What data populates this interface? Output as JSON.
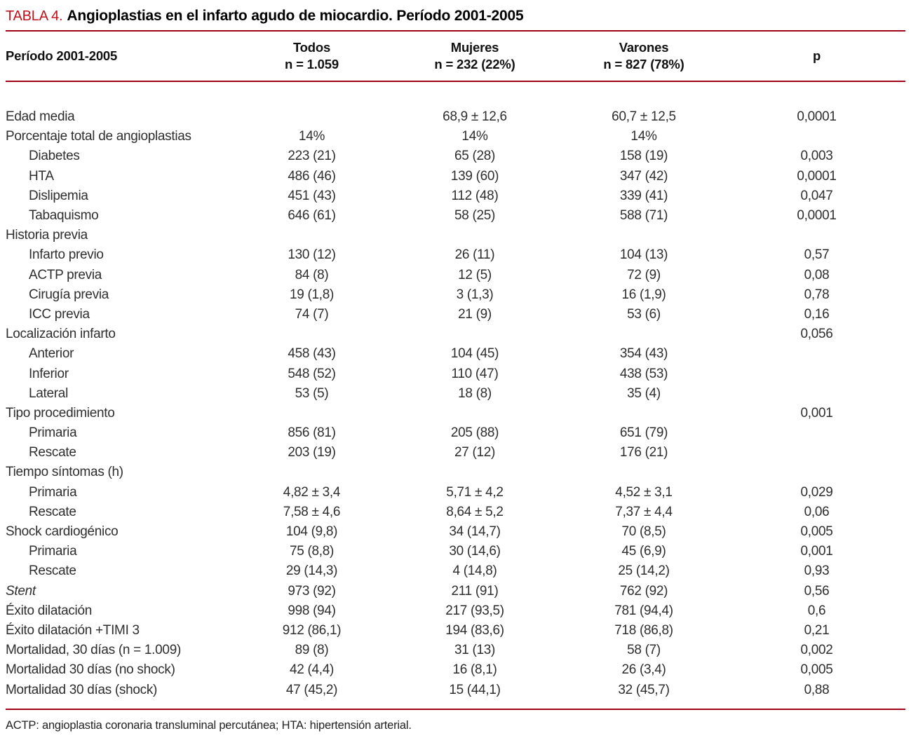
{
  "title": {
    "label": "TABLA 4.",
    "text": "Angioplastias en el infarto agudo de miocardio. Período 2001-2005"
  },
  "colors": {
    "title_red": "#c1121c",
    "rule_red": "#a00018",
    "text": "#2e2e2e"
  },
  "table": {
    "row_header": "Período 2001-2005",
    "columns": [
      {
        "line1": "Todos",
        "line2": "n = 1.059"
      },
      {
        "line1": "Mujeres",
        "line2": "n = 232 (22%)"
      },
      {
        "line1": "Varones",
        "line2": "n = 827 (78%)"
      },
      {
        "line1": "p",
        "line2": ""
      }
    ],
    "rows": [
      {
        "label": "Edad media",
        "indent": false,
        "italic": false,
        "values": [
          "",
          "68,9 ± 12,6",
          "60,7 ± 12,5",
          "0,0001"
        ]
      },
      {
        "label": "Porcentaje total de angioplastias",
        "indent": false,
        "italic": false,
        "values": [
          "14%",
          "14%",
          "14%",
          ""
        ]
      },
      {
        "label": "Diabetes",
        "indent": true,
        "italic": false,
        "values": [
          "223 (21)",
          "65 (28)",
          "158 (19)",
          "0,003"
        ]
      },
      {
        "label": "HTA",
        "indent": true,
        "italic": false,
        "values": [
          "486 (46)",
          "139 (60)",
          "347 (42)",
          "0,0001"
        ]
      },
      {
        "label": "Dislipemia",
        "indent": true,
        "italic": false,
        "values": [
          "451 (43)",
          "112 (48)",
          "339 (41)",
          "0,047"
        ]
      },
      {
        "label": "Tabaquismo",
        "indent": true,
        "italic": false,
        "values": [
          "646 (61)",
          "58 (25)",
          "588 (71)",
          "0,0001"
        ]
      },
      {
        "label": "Historia previa",
        "indent": false,
        "italic": false,
        "values": [
          "",
          "",
          "",
          ""
        ]
      },
      {
        "label": "Infarto previo",
        "indent": true,
        "italic": false,
        "values": [
          "130 (12)",
          "26 (11)",
          "104 (13)",
          "0,57"
        ]
      },
      {
        "label": "ACTP previa",
        "indent": true,
        "italic": false,
        "values": [
          "84 (8)",
          "12 (5)",
          "72 (9)",
          "0,08"
        ]
      },
      {
        "label": "Cirugía previa",
        "indent": true,
        "italic": false,
        "values": [
          "19 (1,8)",
          "3 (1,3)",
          "16 (1,9)",
          "0,78"
        ]
      },
      {
        "label": "ICC previa",
        "indent": true,
        "italic": false,
        "values": [
          "74 (7)",
          "21 (9)",
          "53 (6)",
          "0,16"
        ]
      },
      {
        "label": "Localización infarto",
        "indent": false,
        "italic": false,
        "values": [
          "",
          "",
          "",
          "0,056"
        ]
      },
      {
        "label": "Anterior",
        "indent": true,
        "italic": false,
        "values": [
          "458 (43)",
          "104 (45)",
          "354 (43)",
          ""
        ]
      },
      {
        "label": "Inferior",
        "indent": true,
        "italic": false,
        "values": [
          "548 (52)",
          "110 (47)",
          "438 (53)",
          ""
        ]
      },
      {
        "label": "Lateral",
        "indent": true,
        "italic": false,
        "values": [
          "53 (5)",
          "18 (8)",
          "35 (4)",
          ""
        ]
      },
      {
        "label": "Tipo procedimiento",
        "indent": false,
        "italic": false,
        "values": [
          "",
          "",
          "",
          "0,001"
        ]
      },
      {
        "label": "Primaria",
        "indent": true,
        "italic": false,
        "values": [
          "856 (81)",
          "205 (88)",
          "651 (79)",
          ""
        ]
      },
      {
        "label": "Rescate",
        "indent": true,
        "italic": false,
        "values": [
          "203 (19)",
          "27 (12)",
          "176 (21)",
          ""
        ]
      },
      {
        "label": "Tiempo síntomas (h)",
        "indent": false,
        "italic": false,
        "values": [
          "",
          "",
          "",
          ""
        ]
      },
      {
        "label": "Primaria",
        "indent": true,
        "italic": false,
        "values": [
          "4,82 ± 3,4",
          "5,71 ± 4,2",
          "4,52 ± 3,1",
          "0,029"
        ]
      },
      {
        "label": "Rescate",
        "indent": true,
        "italic": false,
        "values": [
          "7,58 ± 4,6",
          "8,64 ± 5,2",
          "7,37 ± 4,4",
          "0,06"
        ]
      },
      {
        "label": "Shock cardiogénico",
        "indent": false,
        "italic": false,
        "values": [
          "104 (9,8)",
          "34 (14,7)",
          "70 (8,5)",
          "0,005"
        ]
      },
      {
        "label": "Primaria",
        "indent": true,
        "italic": false,
        "values": [
          "75 (8,8)",
          "30 (14,6)",
          "45 (6,9)",
          "0,001"
        ]
      },
      {
        "label": "Rescate",
        "indent": true,
        "italic": false,
        "values": [
          "29 (14,3)",
          "4 (14,8)",
          "25 (14,2)",
          "0,93"
        ]
      },
      {
        "label": "Stent",
        "indent": false,
        "italic": true,
        "values": [
          "973 (92)",
          "211 (91)",
          "762 (92)",
          "0,56"
        ]
      },
      {
        "label": "Éxito dilatación",
        "indent": false,
        "italic": false,
        "values": [
          "998 (94)",
          "217 (93,5)",
          "781 (94,4)",
          "0,6"
        ]
      },
      {
        "label": "Éxito dilatación +TIMI 3",
        "indent": false,
        "italic": false,
        "values": [
          "912 (86,1)",
          "194 (83,6)",
          "718 (86,8)",
          "0,21"
        ]
      },
      {
        "label": "Mortalidad, 30 días (n = 1.009)",
        "indent": false,
        "italic": false,
        "values": [
          "89 (8)",
          "31 (13)",
          "58 (7)",
          "0,002"
        ]
      },
      {
        "label": "Mortalidad 30 días (no shock)",
        "indent": false,
        "italic": false,
        "values": [
          "42 (4,4)",
          "16 (8,1)",
          "26 (3,4)",
          "0,005"
        ]
      },
      {
        "label": "Mortalidad 30 días (shock)",
        "indent": false,
        "italic": false,
        "values": [
          "47 (45,2)",
          "15 (44,1)",
          "32 (45,7)",
          "0,88"
        ]
      }
    ]
  },
  "footnote": "ACTP: angioplastia coronaria transluminal percutánea; HTA: hipertensión arterial."
}
